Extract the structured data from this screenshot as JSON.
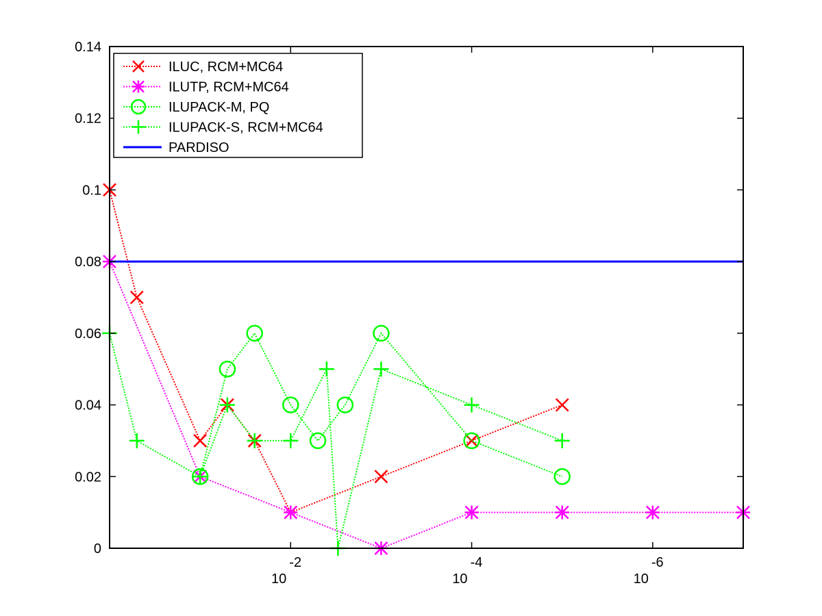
{
  "chart_data": {
    "type": "line",
    "title": "",
    "xlabel": "",
    "ylabel": "",
    "xscale": "log-reversed",
    "xlim": [
      1,
      1e-07
    ],
    "ylim": [
      0,
      0.14
    ],
    "grid": false,
    "legend_position": "top-left",
    "x_ticks": [
      {
        "value": 0.01,
        "base": "10",
        "exponent": "-2"
      },
      {
        "value": 0.0001,
        "base": "10",
        "exponent": "-4"
      },
      {
        "value": 1e-06,
        "base": "10",
        "exponent": "-6"
      }
    ],
    "y_ticks": [
      {
        "value": 0,
        "label": "0"
      },
      {
        "value": 0.02,
        "label": "0.02"
      },
      {
        "value": 0.04,
        "label": "0.04"
      },
      {
        "value": 0.06,
        "label": "0.06"
      },
      {
        "value": 0.08,
        "label": "0.08"
      },
      {
        "value": 0.1,
        "label": "0.1"
      },
      {
        "value": 0.12,
        "label": "0.12"
      },
      {
        "value": 0.14,
        "label": "0.14"
      }
    ],
    "series": [
      {
        "name": "ILUC, RCM+MC64",
        "color": "#ff0000",
        "line": "dotted",
        "marker": "x",
        "points": [
          [
            1,
            0.1
          ],
          [
            0.5,
            0.07
          ],
          [
            0.1,
            0.03
          ],
          [
            0.05,
            0.04
          ],
          [
            0.025,
            0.03
          ],
          [
            0.01,
            0.01
          ],
          [
            0.001,
            0.02
          ],
          [
            0.0001,
            0.03
          ],
          [
            1e-05,
            0.04
          ]
        ]
      },
      {
        "name": "ILUTP, RCM+MC64",
        "color": "#ff00ff",
        "line": "dotted",
        "marker": "asterisk",
        "points": [
          [
            1,
            0.08
          ],
          [
            0.1,
            0.02
          ],
          [
            0.01,
            0.01
          ],
          [
            0.001,
            0.0
          ],
          [
            0.0001,
            0.01
          ],
          [
            1e-05,
            0.01
          ],
          [
            1e-06,
            0.01
          ],
          [
            1e-07,
            0.01
          ]
        ]
      },
      {
        "name": "ILUPACK-M, PQ",
        "color": "#00ff00",
        "line": "dotted",
        "marker": "circle",
        "points": [
          [
            0.1,
            0.02
          ],
          [
            0.05,
            0.05
          ],
          [
            0.025,
            0.06
          ],
          [
            0.01,
            0.04
          ],
          [
            0.005,
            0.03
          ],
          [
            0.0025,
            0.04
          ],
          [
            0.001,
            0.06
          ],
          [
            0.0001,
            0.03
          ],
          [
            1e-05,
            0.02
          ]
        ]
      },
      {
        "name": "ILUPACK-S, RCM+MC64",
        "color": "#00ff00",
        "line": "dotted",
        "marker": "plus",
        "points": [
          [
            1,
            0.06
          ],
          [
            0.5,
            0.03
          ],
          [
            0.1,
            0.02
          ],
          [
            0.05,
            0.04
          ],
          [
            0.025,
            0.03
          ],
          [
            0.01,
            0.03
          ],
          [
            0.004,
            0.05
          ],
          [
            0.003,
            0.0
          ],
          [
            0.001,
            0.05
          ],
          [
            0.0001,
            0.04
          ],
          [
            1e-05,
            0.03
          ]
        ]
      },
      {
        "name": "PARDISO",
        "color": "#0000ff",
        "line": "solid",
        "marker": "none",
        "points": [
          [
            1,
            0.08
          ],
          [
            1e-07,
            0.08
          ]
        ]
      }
    ]
  }
}
